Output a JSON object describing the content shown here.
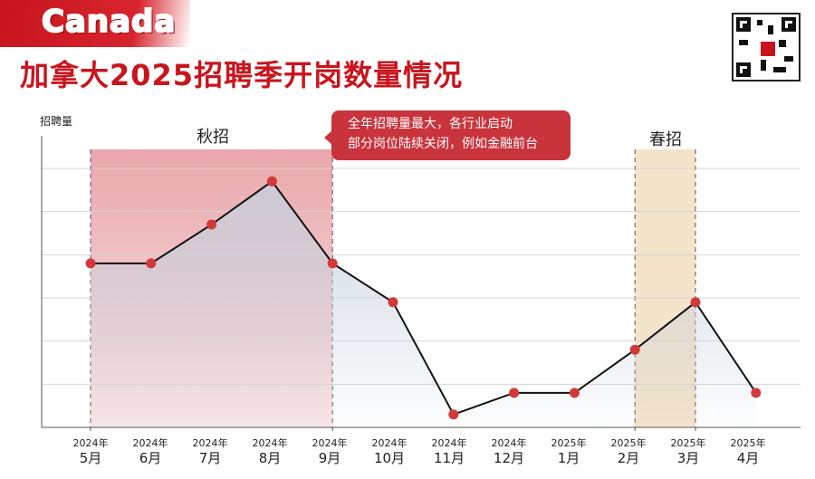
{
  "header": {
    "country": "Canada",
    "title": "加拿大2025招聘季开岗数量情况",
    "qr_icon": "qr-code-icon"
  },
  "colors": {
    "accent": "#c8151d",
    "fall_band": "#e8a2a6",
    "spring_band": "#f2dfbf",
    "line": "#111111",
    "point": "#d03a3a",
    "area": "#c7d0dc"
  },
  "chart_data": {
    "type": "line",
    "title": "加拿大2025招聘季开岗数量情况",
    "ylabel": "招聘量",
    "xlabel": "",
    "grid": true,
    "y_ticks_labeled": false,
    "ylim": [
      0,
      6
    ],
    "categories": [
      {
        "year": "2024年",
        "month": "5月"
      },
      {
        "year": "2024年",
        "month": "6月"
      },
      {
        "year": "2024年",
        "month": "7月"
      },
      {
        "year": "2024年",
        "month": "8月"
      },
      {
        "year": "2024年",
        "month": "9月"
      },
      {
        "year": "2024年",
        "month": "10月"
      },
      {
        "year": "2024年",
        "month": "11月"
      },
      {
        "year": "2024年",
        "month": "12月"
      },
      {
        "year": "2025年",
        "month": "1月"
      },
      {
        "year": "2025年",
        "month": "2月"
      },
      {
        "year": "2025年",
        "month": "3月"
      },
      {
        "year": "2025年",
        "month": "4月"
      }
    ],
    "values": [
      3.8,
      3.8,
      4.7,
      5.7,
      3.8,
      2.9,
      0.3,
      0.8,
      0.8,
      1.8,
      2.9,
      0.8
    ],
    "periods": [
      {
        "label": "秋招",
        "from": 0,
        "to": 4
      },
      {
        "label": "春招",
        "from": 9,
        "to": 10
      }
    ],
    "annotation": {
      "lines": [
        "全年招聘量最大，各行业启动",
        "部分岗位陆续关闭，例如金融前台"
      ],
      "at_index": 4
    }
  }
}
